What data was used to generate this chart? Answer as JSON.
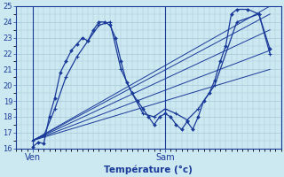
{
  "bg_color": "#cce8f0",
  "grid_color": "#a8c8d8",
  "line_color": "#1a3a9a",
  "xlabel": "Température (°c)",
  "ylim": [
    16,
    25
  ],
  "xlim": [
    0,
    48
  ],
  "yticks": [
    16,
    17,
    18,
    19,
    20,
    21,
    22,
    23,
    24,
    25
  ],
  "ven_x": 3,
  "sam_x": 27,
  "fan_origin_x": 3,
  "fan_origin_y": 16.5,
  "fan_lines": [
    {
      "x2": 46,
      "y2": 25.0
    },
    {
      "x2": 46,
      "y2": 24.5
    },
    {
      "x2": 46,
      "y2": 23.5
    },
    {
      "x2": 46,
      "y2": 22.2
    },
    {
      "x2": 46,
      "y2": 21.0
    }
  ],
  "main_curve": {
    "x": [
      3,
      4,
      5,
      6,
      7,
      8,
      9,
      10,
      11,
      12,
      13,
      14,
      15,
      16,
      17,
      18,
      19,
      20,
      21,
      22,
      23,
      24,
      25,
      26,
      27,
      28,
      29,
      30,
      31,
      32,
      33,
      34,
      35,
      36,
      37,
      38,
      39,
      40,
      42,
      44,
      46
    ],
    "y": [
      16.1,
      16.4,
      16.3,
      18.0,
      19.2,
      20.8,
      21.5,
      22.2,
      22.6,
      23.0,
      22.8,
      23.5,
      24.0,
      24.0,
      23.8,
      23.0,
      21.5,
      20.2,
      19.5,
      19.0,
      18.5,
      18.0,
      17.5,
      18.0,
      18.2,
      18.0,
      17.5,
      17.2,
      17.7,
      17.2,
      18.0,
      19.0,
      19.5,
      20.3,
      21.5,
      22.5,
      24.5,
      24.8,
      24.8,
      24.5,
      22.3
    ]
  },
  "secondary_curve": {
    "x": [
      3,
      5,
      7,
      9,
      11,
      13,
      15,
      17,
      19,
      21,
      23,
      25,
      27,
      29,
      31,
      33,
      36,
      40,
      44,
      46
    ],
    "y": [
      16.5,
      16.8,
      18.5,
      20.5,
      21.8,
      22.8,
      23.8,
      24.0,
      21.0,
      19.5,
      18.2,
      18.0,
      18.5,
      18.2,
      17.8,
      18.5,
      20.0,
      24.0,
      24.5,
      22.0
    ]
  }
}
